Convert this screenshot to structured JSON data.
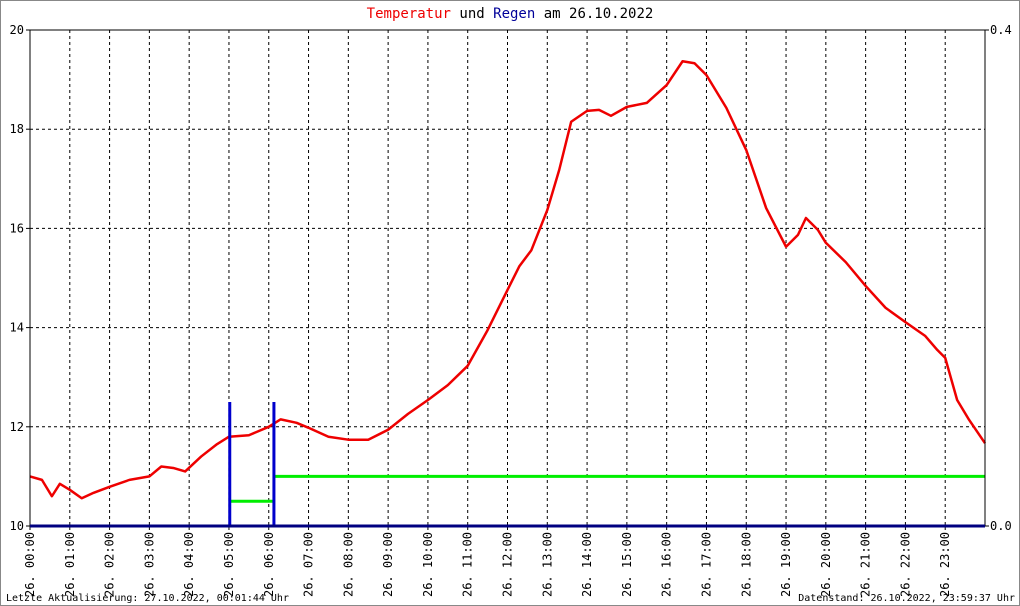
{
  "chart_data": {
    "type": "line",
    "title_parts": [
      {
        "text": "Temperatur",
        "color": "#ee0000"
      },
      {
        "text": "und",
        "color": "#000000"
      },
      {
        "text": "Regen",
        "color": "#000099"
      },
      {
        "text": "am 26.10.2022",
        "color": "#000000"
      }
    ],
    "footer_left": "Letzte Aktualisierung: 27.10.2022, 00:01:44 Uhr",
    "footer_right": "Datenstand: 26.10.2022, 23:59:37 Uhr",
    "xlim": [
      0,
      24
    ],
    "xticks": [
      {
        "value": 0,
        "label": "26. 00:00"
      },
      {
        "value": 1,
        "label": "26. 01:00"
      },
      {
        "value": 2,
        "label": "26. 02:00"
      },
      {
        "value": 3,
        "label": "26. 03:00"
      },
      {
        "value": 4,
        "label": "26. 04:00"
      },
      {
        "value": 5,
        "label": "26. 05:00"
      },
      {
        "value": 6,
        "label": "26. 06:00"
      },
      {
        "value": 7,
        "label": "26. 07:00"
      },
      {
        "value": 8,
        "label": "26. 08:00"
      },
      {
        "value": 9,
        "label": "26. 09:00"
      },
      {
        "value": 10,
        "label": "26. 10:00"
      },
      {
        "value": 11,
        "label": "26. 11:00"
      },
      {
        "value": 12,
        "label": "26. 12:00"
      },
      {
        "value": 13,
        "label": "26. 13:00"
      },
      {
        "value": 14,
        "label": "26. 14:00"
      },
      {
        "value": 15,
        "label": "26. 15:00"
      },
      {
        "value": 16,
        "label": "26. 16:00"
      },
      {
        "value": 17,
        "label": "26. 17:00"
      },
      {
        "value": 18,
        "label": "26. 18:00"
      },
      {
        "value": 19,
        "label": "26. 19:00"
      },
      {
        "value": 20,
        "label": "26. 20:00"
      },
      {
        "value": 21,
        "label": "26. 21:00"
      },
      {
        "value": 22,
        "label": "26. 22:00"
      },
      {
        "value": 23,
        "label": "26. 23:00"
      }
    ],
    "ylim": [
      10,
      20
    ],
    "yticks": [
      10,
      12,
      14,
      16,
      18,
      20
    ],
    "y2lim": [
      0,
      0.4
    ],
    "y2ticks": [
      {
        "value": 0,
        "label": "0.0"
      },
      0.4
    ],
    "grid": true,
    "series": [
      {
        "type": "line",
        "color": "#ee0000",
        "x": [
          0,
          0.3,
          0.55,
          0.75,
          1,
          1.3,
          1.6,
          2,
          2.5,
          3,
          3.3,
          3.6,
          3.9,
          4.3,
          4.7,
          5,
          5.5,
          6,
          6.3,
          6.7,
          7,
          7.5,
          8,
          8.5,
          9,
          9.5,
          10,
          10.5,
          11,
          11.5,
          12,
          12.3,
          12.6,
          13,
          13.3,
          13.6,
          14,
          14.3,
          14.6,
          15,
          15.5,
          16,
          16.4,
          16.7,
          17,
          17.5,
          18,
          18.5,
          19,
          19.3,
          19.5,
          19.8,
          20,
          20.5,
          21,
          21.5,
          22,
          22.5,
          22.8,
          23,
          23.3,
          23.6,
          24
        ],
        "values": [
          11.0,
          10.93,
          10.6,
          10.85,
          10.73,
          10.56,
          10.67,
          10.79,
          10.93,
          11.0,
          11.2,
          11.17,
          11.1,
          11.4,
          11.65,
          11.8,
          11.83,
          12.0,
          12.15,
          12.08,
          11.98,
          11.8,
          11.74,
          11.74,
          11.94,
          12.26,
          12.54,
          12.84,
          13.23,
          13.95,
          14.76,
          15.24,
          15.56,
          16.37,
          17.18,
          18.15,
          18.37,
          18.39,
          18.27,
          18.45,
          18.53,
          18.89,
          19.37,
          19.33,
          19.09,
          18.43,
          17.58,
          16.41,
          15.63,
          15.87,
          16.21,
          15.97,
          15.71,
          15.32,
          14.84,
          14.4,
          14.11,
          13.83,
          13.55,
          13.39,
          12.54,
          12.14,
          11.67
        ]
      },
      {
        "type": "step",
        "color": "#00ee00",
        "axis": "y2",
        "x": [
          5.02,
          6.13
        ],
        "values": [
          0.02,
          0.04
        ]
      },
      {
        "type": "bar",
        "color": "#0000cc",
        "axis": "y2",
        "x": [
          5.02,
          6.13
        ],
        "values": [
          0.1,
          0.1
        ]
      }
    ]
  }
}
